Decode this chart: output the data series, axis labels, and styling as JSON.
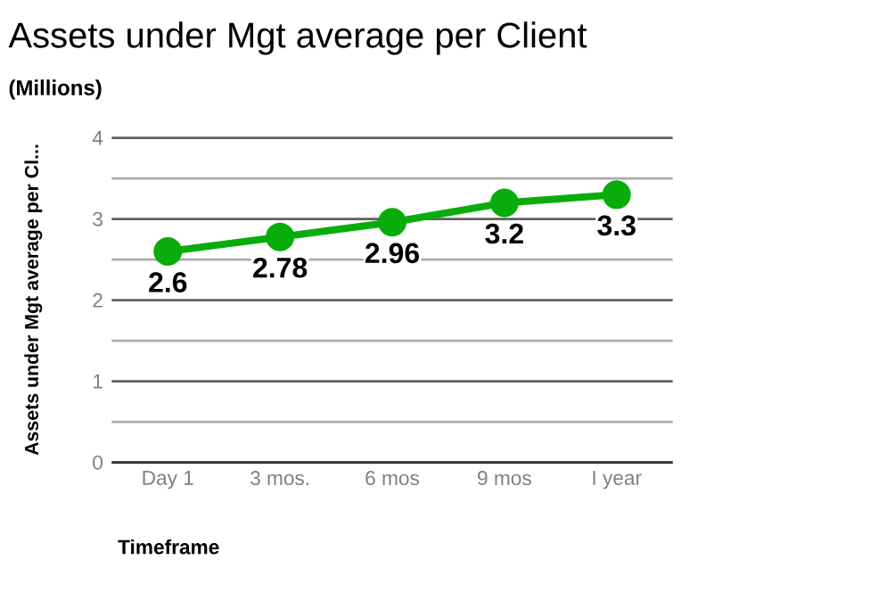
{
  "chart_data": {
    "type": "line",
    "title": "Assets under Mgt average per Client",
    "subtitle": "(Millions)",
    "xlabel": "Timeframe",
    "ylabel": "Assets under Mgt average per Cl...",
    "categories": [
      "Day 1",
      "3 mos.",
      "6 mos",
      "9 mos",
      "I year"
    ],
    "values": [
      2.6,
      2.78,
      2.96,
      3.2,
      3.3
    ],
    "color": "#09ad0b",
    "ylim": [
      0,
      4
    ],
    "yticks": [
      0,
      1,
      2,
      3,
      4
    ],
    "grid": "y",
    "marker": "circle",
    "line_style": "solid",
    "data_labels": true
  }
}
